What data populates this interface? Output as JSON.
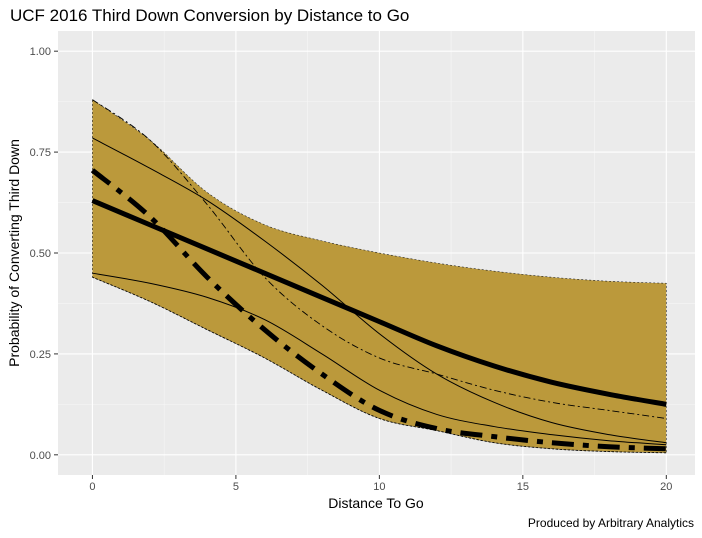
{
  "chart_data": {
    "type": "line",
    "title": "UCF 2016 Third Down Conversion by Distance to Go",
    "xlabel": "Distance To Go",
    "ylabel": "Probability of Converting Third Down",
    "caption": "Produced by Arbitrary Analytics",
    "xlim": [
      -1.2,
      21.0
    ],
    "ylim": [
      -0.05,
      1.05
    ],
    "x_ticks": [
      0,
      5,
      10,
      15,
      20
    ],
    "x_tick_labels": [
      "0",
      "5",
      "10",
      "15",
      "20"
    ],
    "y_ticks": [
      0,
      0.25,
      0.5,
      0.75,
      1.0
    ],
    "y_tick_labels": [
      "0.00",
      "0.25",
      "0.50",
      "0.75",
      "1.00"
    ],
    "ribbon_color": "#bb993b",
    "panel_background": "#ebebeb",
    "ribbon": {
      "x": [
        0,
        2,
        4,
        6,
        8,
        10,
        12,
        14,
        16,
        18,
        20
      ],
      "upper": [
        0.88,
        0.78,
        0.65,
        0.57,
        0.53,
        0.5,
        0.475,
        0.455,
        0.44,
        0.43,
        0.425
      ],
      "lower": [
        0.44,
        0.38,
        0.31,
        0.24,
        0.16,
        0.09,
        0.06,
        0.03,
        0.015,
        0.008,
        0.005
      ]
    },
    "series": [
      {
        "name": "fit-thick-solid",
        "x": [
          0,
          2,
          4,
          6,
          8,
          10,
          12,
          14,
          16,
          18,
          20
        ],
        "values": [
          0.63,
          0.57,
          0.51,
          0.45,
          0.39,
          0.33,
          0.27,
          0.22,
          0.18,
          0.15,
          0.125
        ]
      },
      {
        "name": "upper-bound-thin-solid",
        "x": [
          0,
          2,
          4,
          6,
          8,
          10,
          12,
          14,
          16,
          18,
          20
        ],
        "values": [
          0.785,
          0.71,
          0.63,
          0.53,
          0.42,
          0.3,
          0.2,
          0.13,
          0.08,
          0.05,
          0.03
        ]
      },
      {
        "name": "lower-bound-thin-solid",
        "x": [
          0,
          2,
          4,
          6,
          8,
          10,
          12,
          14,
          16,
          18,
          20
        ],
        "values": [
          0.45,
          0.425,
          0.39,
          0.335,
          0.25,
          0.16,
          0.1,
          0.07,
          0.05,
          0.035,
          0.025
        ]
      },
      {
        "name": "fit-thick-dashdot",
        "x": [
          0,
          2,
          4,
          6,
          8,
          10,
          12,
          14,
          16,
          18,
          20
        ],
        "values": [
          0.705,
          0.59,
          0.44,
          0.31,
          0.2,
          0.11,
          0.065,
          0.045,
          0.03,
          0.02,
          0.015
        ]
      },
      {
        "name": "thin-dashdot",
        "x": [
          0,
          2,
          4,
          6,
          8,
          10,
          12,
          14,
          16,
          18,
          20
        ],
        "values": [
          0.88,
          0.78,
          0.62,
          0.44,
          0.32,
          0.24,
          0.2,
          0.16,
          0.13,
          0.11,
          0.09
        ]
      },
      {
        "name": "lower-ribbon-dashed",
        "x": [
          0,
          2,
          4,
          6,
          8,
          10,
          12,
          14,
          16,
          18,
          20
        ],
        "values": [
          0.44,
          0.38,
          0.31,
          0.24,
          0.16,
          0.09,
          0.06,
          0.03,
          0.015,
          0.008,
          0.005
        ]
      }
    ]
  }
}
